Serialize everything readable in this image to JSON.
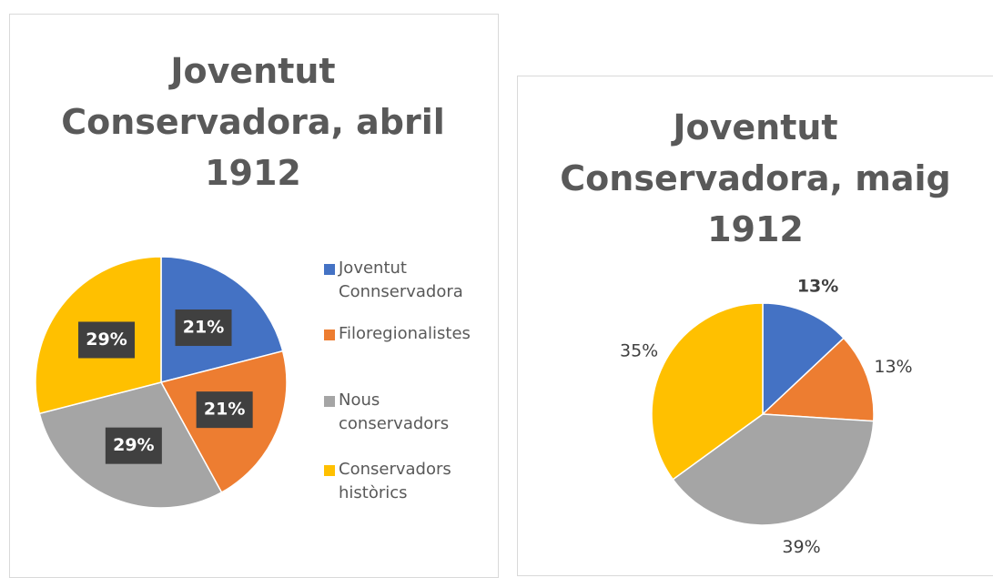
{
  "chart_data": [
    {
      "type": "pie",
      "title": "Joventut Conservadora, abril 1912",
      "categories": [
        "Joventut Connservadora",
        "Filoregionalistes",
        "Nous conservadors",
        "Conservadors històrics"
      ],
      "values": [
        21,
        21,
        29,
        29
      ],
      "value_labels": [
        "21%",
        "21%",
        "29%",
        "29%"
      ],
      "colors": [
        "#4472c4",
        "#ed7d31",
        "#a5a5a5",
        "#ffc000"
      ],
      "legend": "right"
    },
    {
      "type": "pie",
      "title": "Joventut Conservadora, maig 1912",
      "values": [
        13,
        13,
        39,
        35
      ],
      "value_labels": [
        "13%",
        "13%",
        "39%",
        "35%"
      ],
      "colors": [
        "#4472c4",
        "#ed7d31",
        "#a5a5a5",
        "#ffc000"
      ]
    }
  ]
}
